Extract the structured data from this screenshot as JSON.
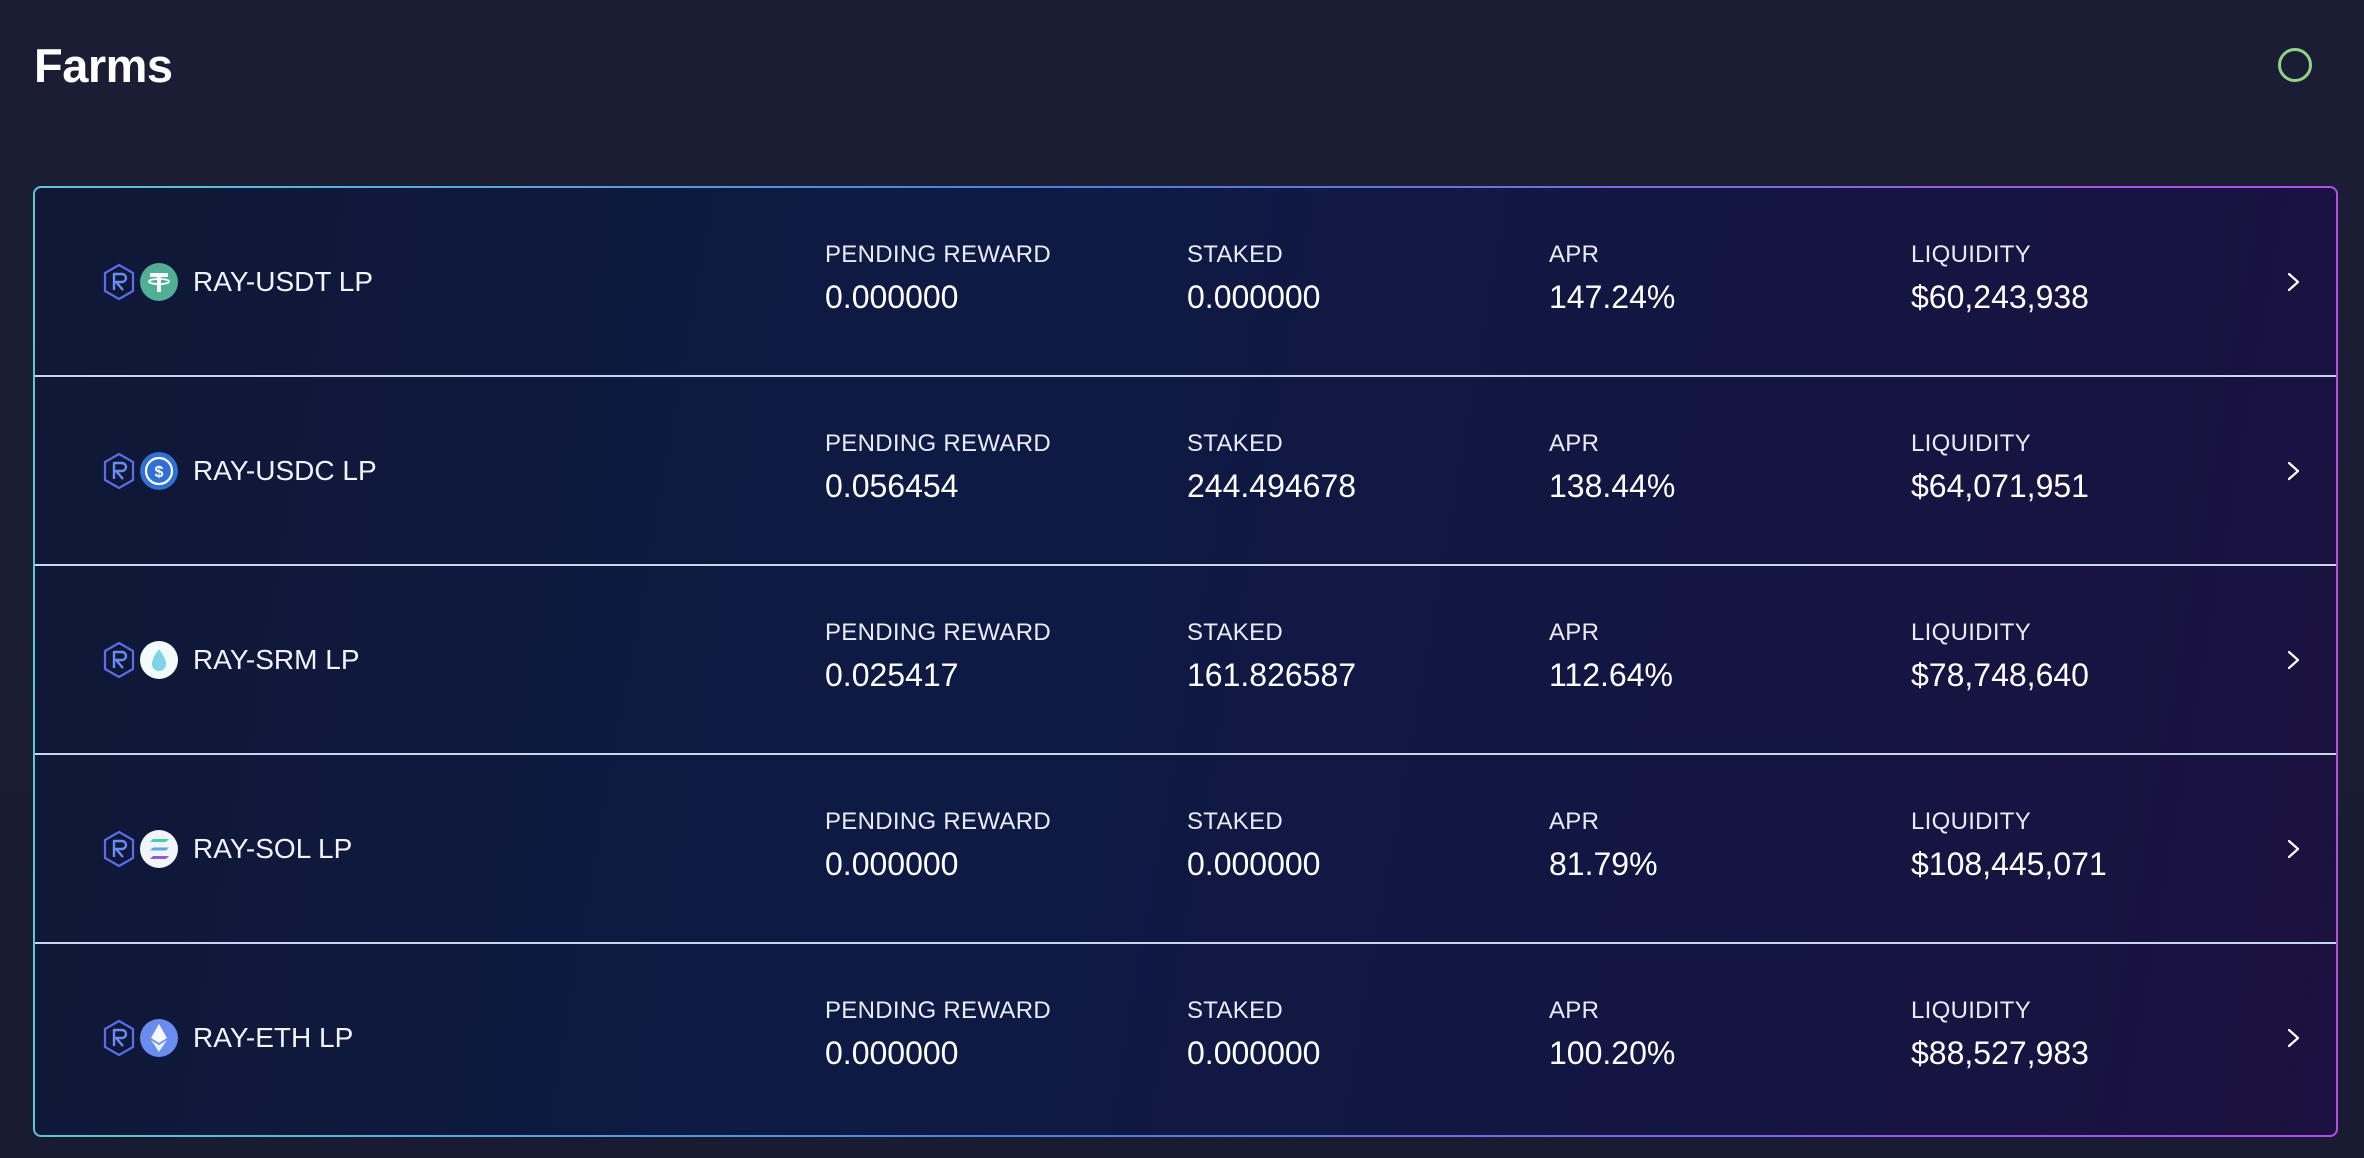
{
  "page": {
    "title": "Farms"
  },
  "labels": {
    "pending_reward": "PENDING REWARD",
    "staked": "STAKED",
    "apr": "APR",
    "liquidity": "LIQUIDITY"
  },
  "farms": [
    {
      "name": "RAY-USDT LP",
      "token_icon": "tether-icon",
      "pending_reward": "0.000000",
      "staked": "0.000000",
      "apr": "147.24%",
      "liquidity": "$60,243,938"
    },
    {
      "name": "RAY-USDC LP",
      "token_icon": "usdc-icon",
      "pending_reward": "0.056454",
      "staked": "244.494678",
      "apr": "138.44%",
      "liquidity": "$64,071,951"
    },
    {
      "name": "RAY-SRM LP",
      "token_icon": "serum-icon",
      "pending_reward": "0.025417",
      "staked": "161.826587",
      "apr": "112.64%",
      "liquidity": "$78,748,640"
    },
    {
      "name": "RAY-SOL LP",
      "token_icon": "solana-icon",
      "pending_reward": "0.000000",
      "staked": "0.000000",
      "apr": "81.79%",
      "liquidity": "$108,445,071"
    },
    {
      "name": "RAY-ETH LP",
      "token_icon": "ethereum-icon",
      "pending_reward": "0.000000",
      "staked": "0.000000",
      "apr": "100.20%",
      "liquidity": "$88,527,983"
    }
  ],
  "colors": {
    "background": "#181c33",
    "status_ring": "#8ed38a",
    "panel_border_start": "#5ec7d6",
    "panel_border_end": "#b44ee8"
  }
}
